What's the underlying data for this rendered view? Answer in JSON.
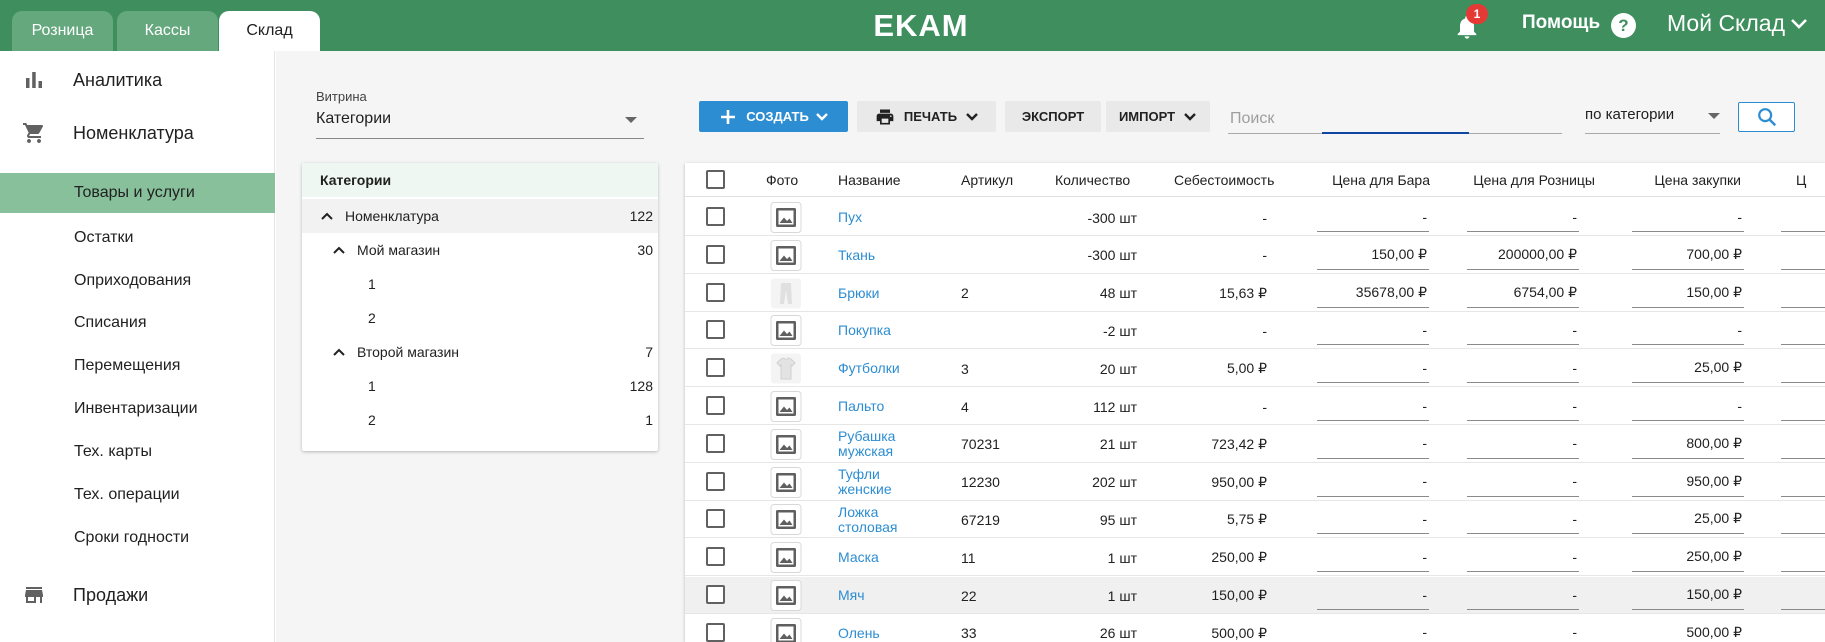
{
  "topbar": {
    "tabs": [
      {
        "label": "Розница",
        "active": false
      },
      {
        "label": "Кассы",
        "active": false
      },
      {
        "label": "Склад",
        "active": true
      }
    ],
    "logo_text": "EKAM",
    "notifications_count": "1",
    "help_label": "Помощь",
    "help_icon_glyph": "?",
    "account_label": "Мой Склад",
    "brand_color": "#3e8e5e"
  },
  "sidebar": {
    "sections": [
      {
        "label": "Аналитика",
        "icon": "bar-chart-icon"
      },
      {
        "label": "Номенклатура",
        "icon": "cart-icon"
      },
      {
        "label": "Продажи",
        "icon": "store-icon"
      }
    ],
    "items": [
      {
        "label": "Товары и услуги",
        "active": true
      },
      {
        "label": "Остатки",
        "active": false
      },
      {
        "label": "Оприходования",
        "active": false
      },
      {
        "label": "Списания",
        "active": false
      },
      {
        "label": "Перемещения",
        "active": false
      },
      {
        "label": "Инвентаризации",
        "active": false
      },
      {
        "label": "Тех. карты",
        "active": false
      },
      {
        "label": "Тех. операции",
        "active": false
      },
      {
        "label": "Сроки годности",
        "active": false
      }
    ]
  },
  "toolbar": {
    "vitrina_label": "Витрина",
    "vitrina_value": "Категории",
    "create_label": "СОЗДАТЬ",
    "print_label": "ПЕЧАТЬ",
    "export_label": "ЭКСПОРТ",
    "import_label": "ИМПОРТ",
    "search_placeholder": "Поиск",
    "filter_value": "по категории",
    "accent_color": "#2d8dd2"
  },
  "categories": {
    "header": "Категории",
    "rows": [
      {
        "name": "Номенклатура",
        "count": "122",
        "level": 0,
        "expanded": true,
        "selected": true
      },
      {
        "name": "Мой магазин",
        "count": "30",
        "level": 1,
        "expanded": true,
        "selected": false
      },
      {
        "name": "1",
        "count": "",
        "level": 2,
        "expanded": false,
        "selected": false
      },
      {
        "name": "2",
        "count": "",
        "level": 2,
        "expanded": false,
        "selected": false
      },
      {
        "name": "Второй магазин",
        "count": "7",
        "level": 1,
        "expanded": true,
        "selected": false
      },
      {
        "name": "1",
        "count": "128",
        "level": 2,
        "expanded": false,
        "selected": false
      },
      {
        "name": "2",
        "count": "1",
        "level": 2,
        "expanded": false,
        "selected": false
      }
    ]
  },
  "table": {
    "columns": [
      "Фото",
      "Название",
      "Артикул",
      "Количество",
      "Себестоимость",
      "Цена для Бара",
      "Цена для Розницы",
      "Цена закупки",
      "Ц"
    ],
    "rows": [
      {
        "photo": "image-placeholder",
        "name": "Пух",
        "sku": "",
        "qty": "-300 шт",
        "cost": "-",
        "bar": "-",
        "retail": "-",
        "purchase": "-"
      },
      {
        "photo": "image-placeholder",
        "name": "Ткань",
        "sku": "",
        "qty": "-300 шт",
        "cost": "-",
        "bar": "150,00 ₽",
        "retail": "200000,00 ₽",
        "purchase": "700,00 ₽"
      },
      {
        "photo": "pants-thumbnail",
        "name": "Брюки",
        "sku": "2",
        "qty": "48 шт",
        "cost": "15,63 ₽",
        "bar": "35678,00 ₽",
        "retail": "6754,00 ₽",
        "purchase": "150,00 ₽"
      },
      {
        "photo": "image-placeholder",
        "name": "Покупка",
        "sku": "",
        "qty": "-2 шт",
        "cost": "-",
        "bar": "-",
        "retail": "-",
        "purchase": "-"
      },
      {
        "photo": "tshirt-thumbnail",
        "name": "Футболки",
        "sku": "3",
        "qty": "20 шт",
        "cost": "5,00 ₽",
        "bar": "-",
        "retail": "-",
        "purchase": "25,00 ₽"
      },
      {
        "photo": "image-placeholder",
        "name": "Пальто",
        "sku": "4",
        "qty": "112 шт",
        "cost": "-",
        "bar": "-",
        "retail": "-",
        "purchase": "-"
      },
      {
        "photo": "image-placeholder",
        "name": "Рубашка мужская",
        "sku": "70231",
        "qty": "21 шт",
        "cost": "723,42 ₽",
        "bar": "-",
        "retail": "-",
        "purchase": "800,00 ₽"
      },
      {
        "photo": "image-placeholder",
        "name": "Туфли женские",
        "sku": "12230",
        "qty": "202 шт",
        "cost": "950,00 ₽",
        "bar": "-",
        "retail": "-",
        "purchase": "950,00 ₽"
      },
      {
        "photo": "image-placeholder",
        "name": "Ложка столовая",
        "sku": "67219",
        "qty": "95 шт",
        "cost": "5,75 ₽",
        "bar": "-",
        "retail": "-",
        "purchase": "25,00 ₽"
      },
      {
        "photo": "image-placeholder",
        "name": "Маска",
        "sku": "11",
        "qty": "1 шт",
        "cost": "250,00 ₽",
        "bar": "-",
        "retail": "-",
        "purchase": "250,00 ₽"
      },
      {
        "photo": "image-placeholder",
        "name": "Мяч",
        "sku": "22",
        "qty": "1 шт",
        "cost": "150,00 ₽",
        "bar": "-",
        "retail": "-",
        "purchase": "150,00 ₽",
        "hover": true
      },
      {
        "photo": "image-placeholder",
        "name": "Олень",
        "sku": "33",
        "qty": "26 шт",
        "cost": "500,00 ₽",
        "bar": "-",
        "retail": "-",
        "purchase": "500,00 ₽"
      }
    ]
  }
}
